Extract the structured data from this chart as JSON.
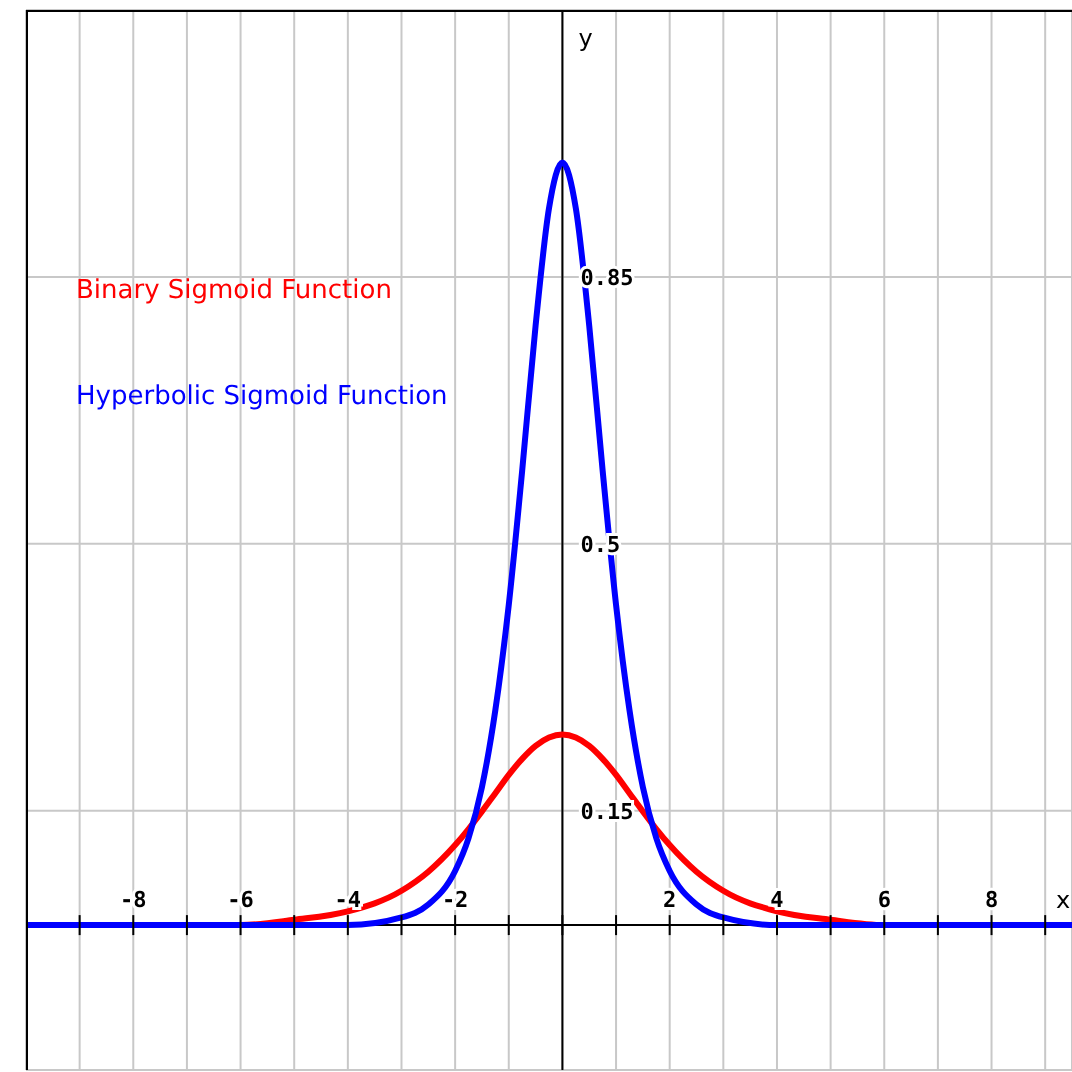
{
  "chart_data": {
    "type": "line",
    "xlabel": "x",
    "ylabel": "y",
    "x": [
      -10,
      -8,
      -6,
      -5,
      -4,
      -3,
      -2.5,
      -2,
      -1.75,
      -1.5,
      -1.25,
      -1,
      -0.75,
      -0.5,
      -0.25,
      0,
      0.25,
      0.5,
      0.75,
      1,
      1.25,
      1.5,
      1.75,
      2,
      2.5,
      3,
      4,
      5,
      6,
      8,
      9.5
    ],
    "series": [
      {
        "name": "Binary Sigmoid Function",
        "color": "#ff0000",
        "values": [
          0,
          0,
          0,
          0.007,
          0.018,
          0.045,
          0.07,
          0.105,
          0.126,
          0.149,
          0.173,
          0.197,
          0.218,
          0.235,
          0.246,
          0.25,
          0.246,
          0.235,
          0.218,
          0.197,
          0.173,
          0.149,
          0.126,
          0.105,
          0.07,
          0.045,
          0.018,
          0.007,
          0,
          0,
          0
        ]
      },
      {
        "name": "Hyperbolic Sigmoid Function",
        "color": "#0000ff",
        "values": [
          0,
          0,
          0,
          0,
          0,
          0.01,
          0.027,
          0.071,
          0.114,
          0.181,
          0.282,
          0.42,
          0.596,
          0.786,
          0.94,
          1,
          0.94,
          0.786,
          0.596,
          0.42,
          0.282,
          0.181,
          0.114,
          0.071,
          0.027,
          0.01,
          0,
          0,
          0,
          0,
          0
        ]
      }
    ],
    "xlim": [
      -10,
      9.5
    ],
    "ylim": [
      -0.19,
      1.2
    ],
    "xticks": [
      {
        "value": -9,
        "label": null
      },
      -8,
      {
        "value": -7,
        "label": null
      },
      -6,
      {
        "value": -5,
        "label": null
      },
      -4,
      {
        "value": -3,
        "label": null
      },
      -2,
      {
        "value": -1,
        "label": null
      },
      {
        "value": 0,
        "label": null
      },
      {
        "value": 1,
        "label": null
      },
      2,
      {
        "value": 3,
        "label": null
      },
      4,
      {
        "value": 5,
        "label": null
      },
      6,
      {
        "value": 7,
        "label": null
      },
      8,
      {
        "value": 9,
        "label": null
      }
    ],
    "yticks": [
      0.15,
      0.5,
      0.85
    ],
    "grid": true,
    "legend": "top left",
    "marker": "none",
    "line_style": "solid"
  }
}
